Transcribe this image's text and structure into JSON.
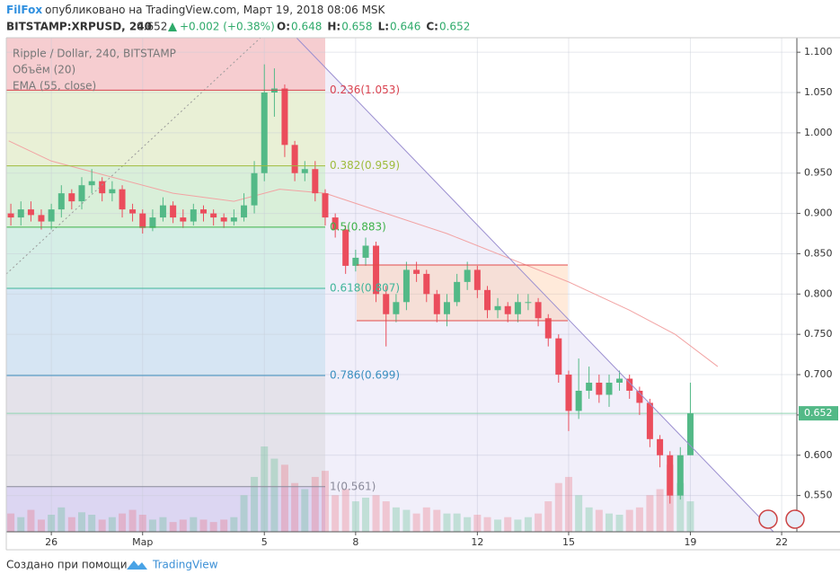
{
  "header": {
    "author": "FilFox",
    "published": "опубликовано на TradingView.com, Март 19, 2018 08:06 MSK",
    "symbol": "BITSTAMP:XRPUSD, 240",
    "price": "0.652",
    "change": "+0.002 (+0.38%)",
    "ohlc": [
      {
        "key": "O:",
        "value": "0.648"
      },
      {
        "key": "H:",
        "value": "0.658"
      },
      {
        "key": "L:",
        "value": "0.646"
      },
      {
        "key": "C:",
        "value": "0.652"
      }
    ]
  },
  "chart_data": {
    "type": "candlestick",
    "title": "Ripple / Dollar, 240, BITSTAMP",
    "up_color": "#53b987",
    "down_color": "#eb4d5c",
    "grid": true,
    "x": [
      -1.33,
      -1,
      -0.67,
      -0.33,
      0,
      0.33,
      0.67,
      1,
      1.33,
      1.67,
      2,
      2.33,
      2.67,
      3,
      3.33,
      3.67,
      4,
      4.33,
      4.67,
      5,
      5.33,
      5.67,
      6,
      6.33,
      6.67,
      7,
      7.33,
      7.67,
      8,
      8.33,
      8.67,
      9,
      9.33,
      9.67,
      10,
      10.33,
      10.67,
      11,
      11.33,
      11.67,
      12,
      12.33,
      12.67,
      13,
      13.33,
      13.67,
      14,
      14.33,
      14.67,
      15,
      15.33,
      15.67,
      16,
      16.33,
      16.67,
      17,
      17.33,
      17.67,
      18,
      18.33,
      18.67,
      19,
      19.33,
      19.67,
      20,
      20.33,
      20.67,
      21
    ],
    "open": [
      0.9,
      0.895,
      0.905,
      0.898,
      0.89,
      0.905,
      0.925,
      0.915,
      0.935,
      0.94,
      0.925,
      0.93,
      0.905,
      0.9,
      0.882,
      0.895,
      0.91,
      0.895,
      0.89,
      0.905,
      0.9,
      0.895,
      0.89,
      0.895,
      0.91,
      0.95,
      1.05,
      1.055,
      0.985,
      0.95,
      0.955,
      0.925,
      0.895,
      0.88,
      0.835,
      0.845,
      0.86,
      0.8,
      0.775,
      0.79,
      0.83,
      0.825,
      0.8,
      0.775,
      0.79,
      0.815,
      0.83,
      0.805,
      0.78,
      0.785,
      0.775,
      0.79,
      0.79,
      0.77,
      0.745,
      0.7,
      0.655,
      0.68,
      0.69,
      0.675,
      0.69,
      0.695,
      0.68,
      0.665,
      0.62,
      0.6,
      0.55,
      0.6
    ],
    "high": [
      0.912,
      0.915,
      0.915,
      0.905,
      0.912,
      0.935,
      0.93,
      0.945,
      0.955,
      0.945,
      0.94,
      0.935,
      0.912,
      0.905,
      0.905,
      0.92,
      0.915,
      0.905,
      0.912,
      0.91,
      0.905,
      0.9,
      0.905,
      0.925,
      0.965,
      1.085,
      1.08,
      1.06,
      0.99,
      0.965,
      0.965,
      0.93,
      0.9,
      0.885,
      0.855,
      0.87,
      0.865,
      0.81,
      0.8,
      0.84,
      0.84,
      0.83,
      0.805,
      0.8,
      0.825,
      0.84,
      0.835,
      0.81,
      0.795,
      0.79,
      0.8,
      0.8,
      0.795,
      0.775,
      0.75,
      0.705,
      0.72,
      0.71,
      0.7,
      0.7,
      0.705,
      0.7,
      0.685,
      0.67,
      0.625,
      0.605,
      0.61,
      0.69
    ],
    "low": [
      0.885,
      0.885,
      0.89,
      0.88,
      0.88,
      0.895,
      0.905,
      0.905,
      0.925,
      0.915,
      0.915,
      0.895,
      0.89,
      0.875,
      0.878,
      0.89,
      0.888,
      0.882,
      0.885,
      0.89,
      0.885,
      0.882,
      0.885,
      0.89,
      0.9,
      0.94,
      1.02,
      0.97,
      0.94,
      0.94,
      0.915,
      0.885,
      0.87,
      0.825,
      0.828,
      0.835,
      0.79,
      0.735,
      0.765,
      0.78,
      0.815,
      0.79,
      0.765,
      0.76,
      0.785,
      0.805,
      0.795,
      0.77,
      0.77,
      0.765,
      0.765,
      0.78,
      0.76,
      0.735,
      0.69,
      0.63,
      0.645,
      0.67,
      0.665,
      0.66,
      0.68,
      0.67,
      0.65,
      0.61,
      0.585,
      0.54,
      0.545,
      0.6
    ],
    "close": [
      0.895,
      0.905,
      0.898,
      0.89,
      0.905,
      0.925,
      0.915,
      0.935,
      0.94,
      0.925,
      0.93,
      0.905,
      0.9,
      0.882,
      0.895,
      0.91,
      0.895,
      0.89,
      0.905,
      0.9,
      0.895,
      0.89,
      0.895,
      0.91,
      0.95,
      1.05,
      1.055,
      0.985,
      0.95,
      0.955,
      0.925,
      0.895,
      0.88,
      0.835,
      0.845,
      0.86,
      0.8,
      0.775,
      0.79,
      0.83,
      0.825,
      0.8,
      0.775,
      0.79,
      0.815,
      0.83,
      0.805,
      0.78,
      0.785,
      0.775,
      0.79,
      0.79,
      0.77,
      0.745,
      0.7,
      0.655,
      0.68,
      0.69,
      0.675,
      0.69,
      0.695,
      0.68,
      0.665,
      0.62,
      0.6,
      0.55,
      0.6,
      0.652
    ],
    "volume": {
      "name": "Объём (20)",
      "values": [
        15,
        12,
        18,
        10,
        14,
        20,
        12,
        16,
        14,
        10,
        12,
        15,
        18,
        14,
        10,
        12,
        8,
        10,
        12,
        10,
        8,
        10,
        12,
        30,
        45,
        70,
        60,
        55,
        40,
        35,
        45,
        50,
        30,
        35,
        25,
        28,
        30,
        25,
        20,
        18,
        15,
        20,
        18,
        15,
        15,
        12,
        14,
        12,
        10,
        12,
        10,
        12,
        15,
        25,
        40,
        45,
        30,
        20,
        18,
        15,
        14,
        18,
        20,
        30,
        35,
        55,
        40,
        25
      ]
    },
    "ema": {
      "name": "EMA (55, close)",
      "color": "#f2a3a3",
      "x": [
        -1.4,
        0,
        2,
        4,
        6,
        7.5,
        9,
        11,
        13,
        15,
        17,
        19,
        20.5,
        21.9
      ],
      "values": [
        0.99,
        0.965,
        0.945,
        0.925,
        0.915,
        0.93,
        0.925,
        0.9,
        0.875,
        0.845,
        0.815,
        0.78,
        0.75,
        0.71
      ]
    },
    "fib_levels": [
      {
        "label": "0.236(1.053)",
        "value": 1.053,
        "color": "#d9424f",
        "fill": "#f6cdd0"
      },
      {
        "label": "0.382(0.959)",
        "value": 0.959,
        "color": "#9ebc3c",
        "fill": "#e9f0d6"
      },
      {
        "label": "0.5(0.883)",
        "value": 0.883,
        "color": "#3fb24a",
        "fill": "#d9efd9"
      },
      {
        "label": "0.618(0.807)",
        "value": 0.807,
        "color": "#3fb59a",
        "fill": "#d5eee6"
      },
      {
        "label": "0.786(0.699)",
        "value": 0.699,
        "color": "#3a8fc0",
        "fill": "#d6e5f3"
      },
      {
        "label": "1(0.561)",
        "value": 0.561,
        "color": "#8a8a9a",
        "fill": "#e4e2ea"
      }
    ],
    "last_price": {
      "value": 0.652,
      "label": "0.652"
    },
    "xlim": [
      -1.48,
      24.5
    ],
    "xticks": [
      {
        "value": 0,
        "label": "26"
      },
      {
        "value": 3,
        "label": "Мар"
      },
      {
        "value": 7,
        "label": "5"
      },
      {
        "value": 10,
        "label": "8"
      },
      {
        "value": 14,
        "label": "12"
      },
      {
        "value": 17,
        "label": "15"
      },
      {
        "value": 21,
        "label": "19"
      },
      {
        "value": 24,
        "label": "22"
      }
    ],
    "ylim": [
      0.505,
      1.118
    ],
    "yticks": [
      {
        "value": 0.55,
        "label": "0.550"
      },
      {
        "value": 0.6,
        "label": "0.600"
      },
      {
        "value": 0.65,
        "label": "0.650"
      },
      {
        "value": 0.7,
        "label": "0.700"
      },
      {
        "value": 0.75,
        "label": "0.750"
      },
      {
        "value": 0.8,
        "label": "0.800"
      },
      {
        "value": 0.85,
        "label": "0.850"
      },
      {
        "value": 0.9,
        "label": "0.900"
      },
      {
        "value": 0.95,
        "label": "0.950"
      },
      {
        "value": 1.0,
        "label": "1.000"
      },
      {
        "value": 1.05,
        "label": "1.050"
      },
      {
        "value": 1.1,
        "label": "1.100"
      }
    ]
  },
  "footer": {
    "created": "Создано при помощи",
    "brand": "TradingView"
  }
}
